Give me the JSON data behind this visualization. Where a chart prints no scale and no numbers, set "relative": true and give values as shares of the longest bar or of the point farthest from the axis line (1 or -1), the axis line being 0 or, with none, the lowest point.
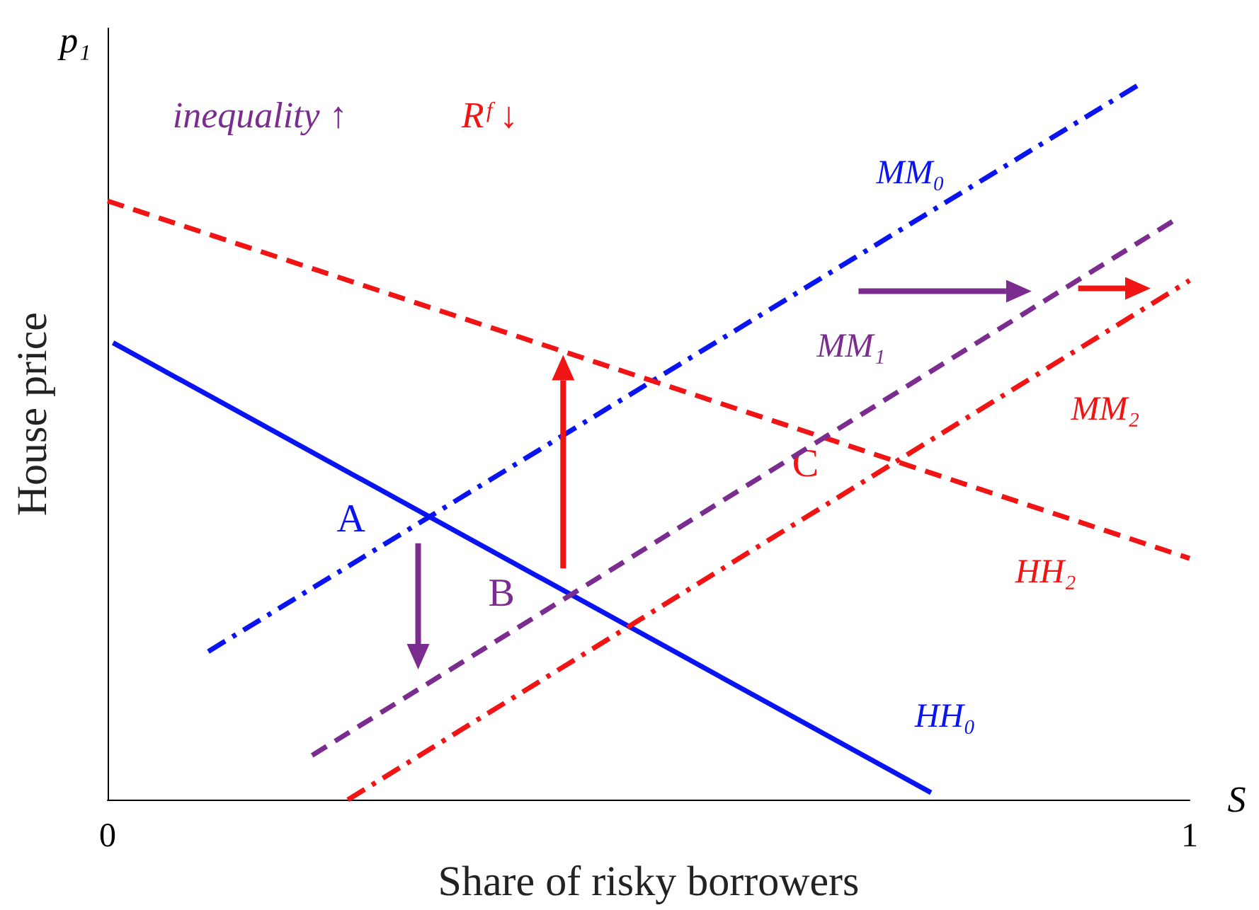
{
  "chart_data": {
    "type": "line",
    "relative": true,
    "xlabel": "Share of risky borrowers",
    "ylabel": "House price",
    "xlim": [
      0,
      1
    ],
    "xticks": [
      0,
      1
    ],
    "grid": false,
    "legend": false,
    "marker": "none",
    "series": [
      {
        "name": "HH₀",
        "color": "#0a14f0",
        "line_style": "solid",
        "x": [
          0.005,
          0.761
        ],
        "values": [
          0.638,
          0.01
        ]
      },
      {
        "name": "MM₀",
        "color": "#0a14f0",
        "line_style": "dashdot",
        "x": [
          0.093,
          0.955
        ],
        "values": [
          0.207,
          1
        ]
      },
      {
        "name": "HH₂",
        "color": "#f01414",
        "line_style": "dashed",
        "x": [
          0,
          1
        ],
        "values": [
          0.836,
          0.337
        ]
      },
      {
        "name": "MM₁",
        "color": "#7b2d8f",
        "line_style": "dashed",
        "x": [
          0.189,
          0.987
        ],
        "values": [
          0.062,
          0.81
        ]
      },
      {
        "name": "MM₂",
        "color": "#f01414",
        "line_style": "dashdot",
        "x": [
          0.222,
          1
        ],
        "values": [
          0,
          0.725
        ]
      }
    ],
    "annotations": [
      "p₁",
      "S",
      "inequality ↑",
      "Rᶠ ↓",
      {
        "text": "A",
        "x": 0.3,
        "y": 0.391
      },
      {
        "text": "B",
        "x": 0.429,
        "y": 0.288
      },
      {
        "text": "C",
        "x": 0.66,
        "y": 0.508
      }
    ]
  }
}
